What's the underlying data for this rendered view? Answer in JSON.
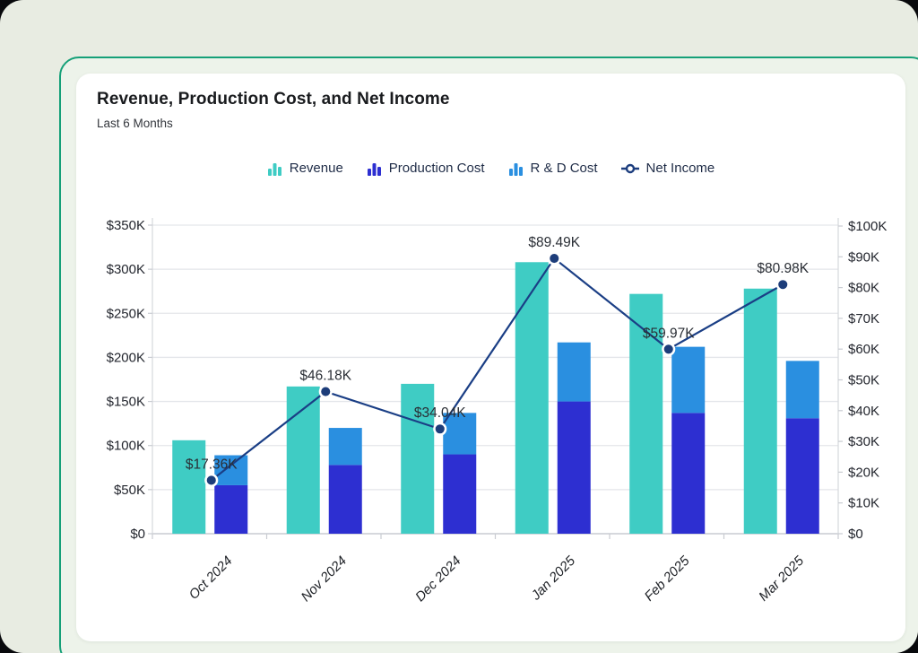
{
  "page": {
    "backdrop_color": "#08090c",
    "surface_color": "#e8ece2"
  },
  "card": {
    "border_color": "#15a078",
    "inner_background": "#ffffff",
    "title": "Revenue, Production Cost, and Net Income",
    "subtitle": "Last 6 Months"
  },
  "legend": {
    "items": [
      {
        "label": "Revenue",
        "icon": "bar-chart-icon",
        "color": "#3fccc4"
      },
      {
        "label": "Production Cost",
        "icon": "bar-chart-icon",
        "color": "#2d2fd1"
      },
      {
        "label": "R & D Cost",
        "icon": "bar-chart-icon",
        "color": "#2a8fe0"
      },
      {
        "label": "Net Income",
        "icon": "line-point-icon",
        "color": "#1c3d7e"
      }
    ]
  },
  "chart_data": {
    "type": "bar",
    "subtype": "combo-stacked-bar-with-line",
    "title": "Revenue, Production Cost, and Net Income",
    "subtitle": "Last 6 Months",
    "categories": [
      "Oct 2024",
      "Nov 2024",
      "Dec 2024",
      "Jan 2025",
      "Feb 2025",
      "Mar 2025"
    ],
    "unit": "thousand USD",
    "series": [
      {
        "name": "Revenue",
        "type": "bar",
        "axis": "left",
        "color": "#3fccc4",
        "values": [
          106,
          167,
          170,
          308,
          272,
          278
        ]
      },
      {
        "name": "Production Cost",
        "type": "bar",
        "axis": "left",
        "stack": "cost",
        "color": "#2d2fd1",
        "values": [
          55,
          78,
          90,
          150,
          137,
          131
        ]
      },
      {
        "name": "R & D Cost",
        "type": "bar",
        "axis": "left",
        "stack": "cost",
        "color": "#2a8fe0",
        "values": [
          34,
          42,
          47,
          67,
          75,
          65
        ]
      },
      {
        "name": "Net Income",
        "type": "line",
        "axis": "right",
        "color": "#1a3e85",
        "marker_fill": "#1d3d7a",
        "values": [
          17.36,
          46.18,
          34.04,
          89.49,
          59.97,
          80.98
        ],
        "point_labels": [
          "$17.36K",
          "$46.18K",
          "$34.04K",
          "$89.49K",
          "$59.97K",
          "$80.98K"
        ]
      }
    ],
    "y_left": {
      "min": 0,
      "max": 350,
      "step": 50,
      "tick_labels": [
        "$0",
        "$50K",
        "$100K",
        "$150K",
        "$200K",
        "$250K",
        "$300K",
        "$350K"
      ]
    },
    "y_right": {
      "min": 0,
      "max": 100,
      "step": 10,
      "tick_labels": [
        "$0",
        "$10K",
        "$20K",
        "$30K",
        "$40K",
        "$50K",
        "$60K",
        "$70K",
        "$80K",
        "$90K",
        "$100K"
      ]
    },
    "grid": true,
    "legend_position": "top-center",
    "x_label_style": "italic, rotated -45deg"
  }
}
